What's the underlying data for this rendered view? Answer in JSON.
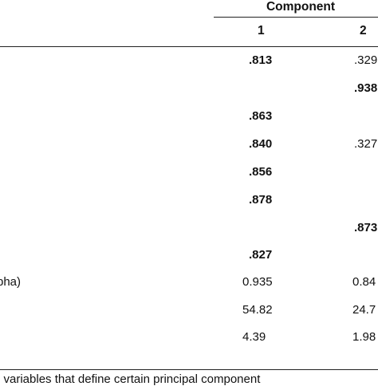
{
  "header": {
    "component": "Component"
  },
  "columns": [
    "1",
    "2"
  ],
  "rows": [
    {
      "c1": ".813",
      "c1_bold": true,
      "c2": ".329",
      "c2_bold": false
    },
    {
      "c1": "",
      "c1_bold": false,
      "c2": ".938",
      "c2_bold": true
    },
    {
      "c1": ".863",
      "c1_bold": true,
      "c2": "",
      "c2_bold": false
    },
    {
      "c1": ".840",
      "c1_bold": true,
      "c2": ".327",
      "c2_bold": false
    },
    {
      "c1": ".856",
      "c1_bold": true,
      "c2": "",
      "c2_bold": false
    },
    {
      "c1": ".878",
      "c1_bold": true,
      "c2": "",
      "c2_bold": false
    },
    {
      "c1": "",
      "c1_bold": false,
      "c2": ".873",
      "c2_bold": true
    },
    {
      "c1": ".827",
      "c1_bold": true,
      "c2": "",
      "c2_bold": false
    }
  ],
  "summary": [
    {
      "label": "pha)",
      "c1": "0.935",
      "c2": "0.84"
    },
    {
      "label": "",
      "c1": "54.82",
      "c2": "24.7"
    },
    {
      "label": "",
      "c1": "4.39",
      "c2": "1.98"
    }
  ],
  "footnote": "n variables that define certain principal component"
}
